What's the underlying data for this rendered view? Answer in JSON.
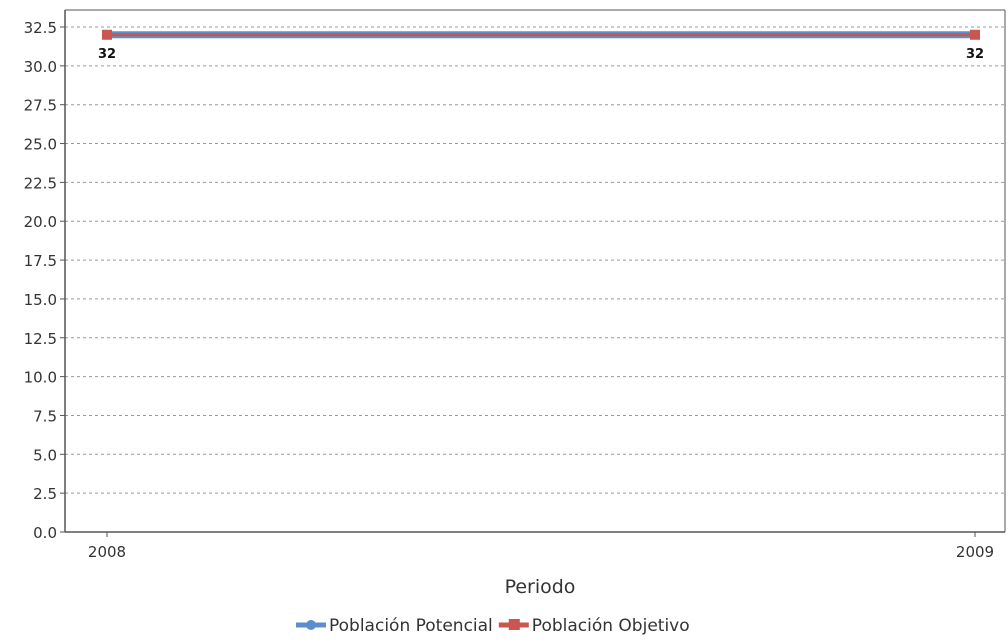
{
  "chart_data": {
    "type": "line",
    "title": "",
    "xlabel": "Periodo",
    "ylabel": "",
    "categories": [
      "2008",
      "2009"
    ],
    "ylim": [
      0,
      32.5
    ],
    "yticks": [
      "0.0",
      "2.5",
      "5.0",
      "7.5",
      "10.0",
      "12.5",
      "15.0",
      "17.5",
      "20.0",
      "22.5",
      "25.0",
      "27.5",
      "30.0",
      "32.5"
    ],
    "grid": true,
    "legend_position": "bottom",
    "series": [
      {
        "name": "Población Potencial",
        "values": [
          32,
          32
        ],
        "color": "#5b8fcb",
        "marker": "circle"
      },
      {
        "name": "Población Objetivo",
        "values": [
          32,
          32
        ],
        "color": "#c9564f",
        "marker": "square",
        "data_labels": [
          "32",
          "32"
        ]
      }
    ]
  }
}
